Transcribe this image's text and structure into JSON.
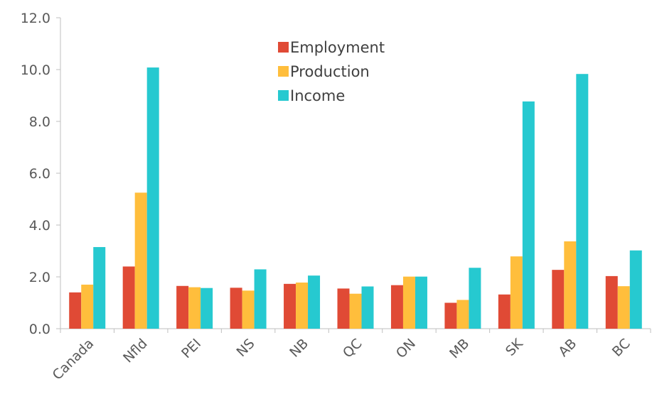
{
  "chart_data": {
    "type": "bar",
    "categories": [
      "Canada",
      "Nfld",
      "PEI",
      "NS",
      "NB",
      "QC",
      "ON",
      "MB",
      "SK",
      "AB",
      "BC"
    ],
    "series": [
      {
        "name": "Employment",
        "color": "#e04a35",
        "values": [
          1.4,
          2.4,
          1.65,
          1.58,
          1.73,
          1.55,
          1.68,
          1.0,
          1.32,
          2.27,
          2.03
        ]
      },
      {
        "name": "Production",
        "color": "#ffbe3c",
        "values": [
          1.7,
          5.25,
          1.6,
          1.47,
          1.78,
          1.35,
          2.01,
          1.11,
          2.79,
          3.37,
          1.64
        ]
      },
      {
        "name": "Income",
        "color": "#26c9d0",
        "values": [
          3.15,
          10.08,
          1.57,
          2.29,
          2.05,
          1.63,
          2.01,
          2.35,
          8.77,
          9.83,
          3.02
        ]
      }
    ],
    "ylim": [
      0,
      12
    ],
    "yticks": [
      "0.0",
      "2.0",
      "4.0",
      "6.0",
      "8.0",
      "10.0",
      "12.0"
    ],
    "ytick_values": [
      0,
      2,
      4,
      6,
      8,
      10,
      12
    ],
    "title": "",
    "xlabel": "",
    "ylabel": "",
    "legend_position": "top-center",
    "grid": false
  }
}
